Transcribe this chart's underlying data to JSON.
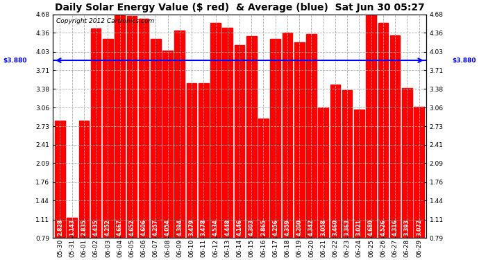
{
  "title": "Daily Solar Energy Value ($ red)  & Average (blue)  Sat Jun 30 05:27",
  "copyright": "Copyright 2012 Cartronics.com",
  "categories": [
    "05-30",
    "05-31",
    "06-01",
    "06-02",
    "06-03",
    "06-04",
    "06-05",
    "06-06",
    "06-07",
    "06-08",
    "06-09",
    "06-10",
    "06-11",
    "06-12",
    "06-13",
    "06-14",
    "06-15",
    "06-16",
    "06-17",
    "06-18",
    "06-19",
    "06-20",
    "06-21",
    "06-22",
    "06-23",
    "06-24",
    "06-25",
    "06-26",
    "06-27",
    "06-28",
    "06-29"
  ],
  "values": [
    2.828,
    1.143,
    2.835,
    4.435,
    4.252,
    4.667,
    4.652,
    4.606,
    4.257,
    4.054,
    4.394,
    3.479,
    3.478,
    4.534,
    4.448,
    4.146,
    4.303,
    2.865,
    4.256,
    4.359,
    4.2,
    4.342,
    3.058,
    3.46,
    3.363,
    3.021,
    4.68,
    4.526,
    4.316,
    3.393,
    3.072
  ],
  "average": 3.88,
  "bar_color": "#ff0000",
  "avg_line_color": "#0000ff",
  "bg_color": "#ffffff",
  "plot_bg_color": "#ffffff",
  "grid_color": "#aaaaaa",
  "left_avg_label": "$3.880",
  "right_avg_label": "$3.880",
  "ylim_min": 0.79,
  "ylim_max": 4.68,
  "yticks": [
    0.79,
    1.11,
    1.44,
    1.76,
    2.09,
    2.41,
    2.73,
    3.06,
    3.38,
    3.71,
    4.03,
    4.36,
    4.68
  ],
  "title_fontsize": 10,
  "copyright_fontsize": 6.5,
  "tick_fontsize": 6.5,
  "value_fontsize": 5.5
}
